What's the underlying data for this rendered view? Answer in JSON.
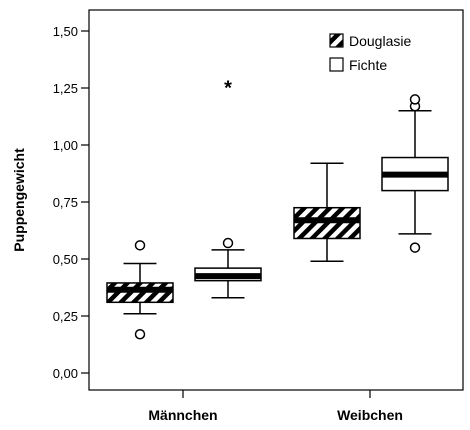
{
  "chart_data": {
    "type": "boxplot",
    "ylabel": "Puppengewicht",
    "xlabel": "",
    "ylim": [
      0.0,
      1.6
    ],
    "yticks": [
      0.0,
      0.25,
      0.5,
      0.75,
      1.0,
      1.25,
      1.5
    ],
    "ytick_labels": [
      "0,00",
      "0,25",
      "0,50",
      "0,75",
      "1,00",
      "1,25",
      "1,50"
    ],
    "categories": [
      "Männchen",
      "Weibchen"
    ],
    "legend": {
      "placement": "top-right"
    },
    "series": [
      {
        "name": "Douglasie",
        "fill": "hatched",
        "boxes": [
          {
            "category": "Männchen",
            "whisker_low": 0.26,
            "q1": 0.31,
            "median": 0.365,
            "q3": 0.395,
            "whisker_high": 0.48,
            "outliers": [
              0.56,
              0.17
            ],
            "extremes": []
          },
          {
            "category": "Weibchen",
            "whisker_low": 0.49,
            "q1": 0.59,
            "median": 0.67,
            "q3": 0.725,
            "whisker_high": 0.92,
            "outliers": [],
            "extremes": []
          }
        ]
      },
      {
        "name": "Fichte",
        "fill": "white",
        "boxes": [
          {
            "category": "Männchen",
            "whisker_low": 0.33,
            "q1": 0.405,
            "median": 0.425,
            "q3": 0.46,
            "whisker_high": 0.54,
            "outliers": [
              0.57
            ],
            "extremes": [
              1.26
            ]
          },
          {
            "category": "Weibchen",
            "whisker_low": 0.61,
            "q1": 0.8,
            "median": 0.87,
            "q3": 0.945,
            "whisker_high": 1.15,
            "outliers": [
              1.17,
              1.2,
              0.55
            ],
            "extremes": []
          }
        ]
      }
    ]
  }
}
